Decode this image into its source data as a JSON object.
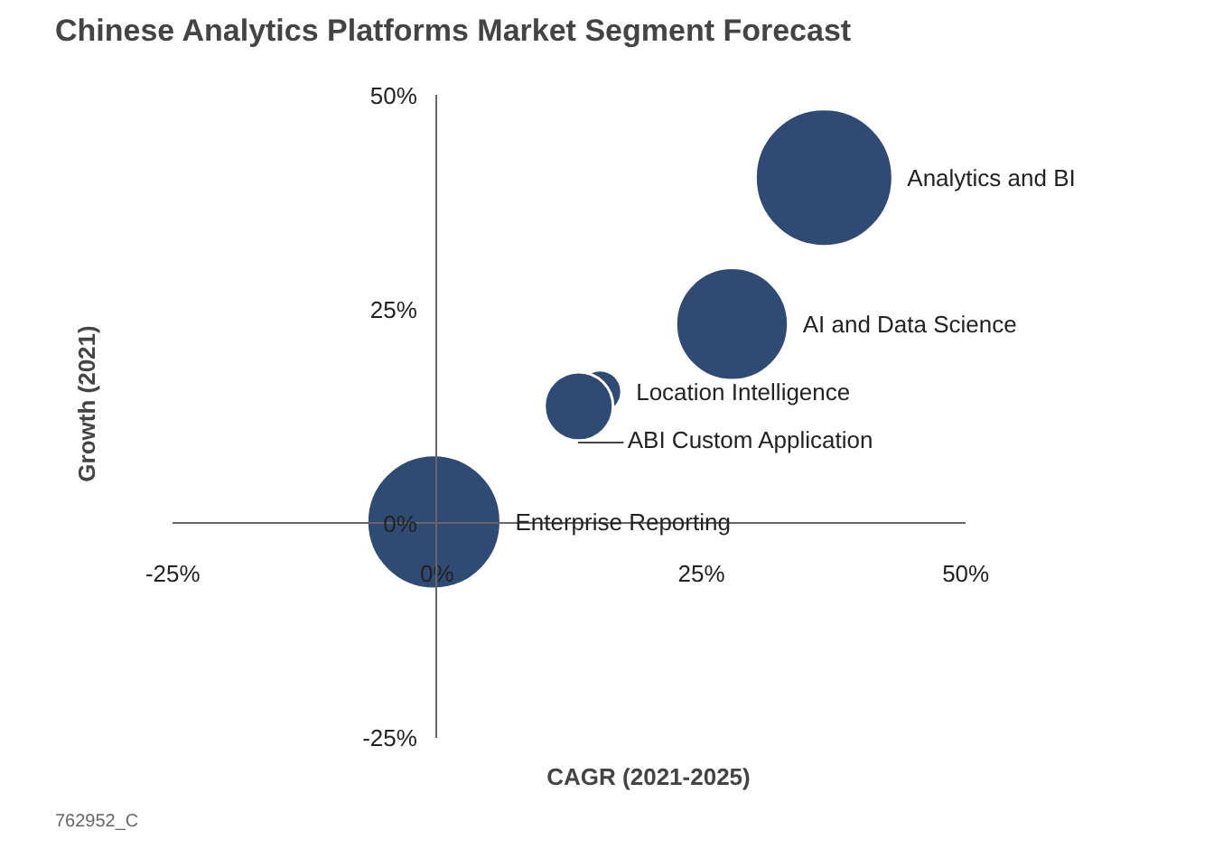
{
  "chart_data": {
    "type": "bubble",
    "title": "Chinese Analytics Platforms Market Segment Forecast",
    "xlabel": "CAGR (2021-2025)",
    "ylabel": "Growth (2021)",
    "series": [
      {
        "name": "Analytics and BI",
        "color": "#2f4b74",
        "x": [
          36.6
        ],
        "values": [
          40.4
        ],
        "sizes": [
          1.0
        ]
      },
      {
        "name": "AI and Data Science",
        "color": "#2f4b74",
        "x": [
          27.9
        ],
        "values": [
          23.3
        ],
        "sizes": [
          0.67
        ]
      },
      {
        "name": "Location Intelligence",
        "color": "#2f4b74",
        "x": [
          15.4
        ],
        "values": [
          15.4
        ],
        "sizes": [
          0.1
        ]
      },
      {
        "name": "ABI Custom Application",
        "color": "#2f4b74",
        "x": [
          13.4
        ],
        "values": [
          13.7
        ],
        "sizes": [
          0.25
        ]
      },
      {
        "name": "Enterprise Reporting",
        "color": "#2f4b74",
        "x": [
          -0.3
        ],
        "values": [
          0.2
        ],
        "sizes": [
          0.95
        ]
      }
    ],
    "xlim": [
      -25,
      50
    ],
    "ylim": [
      -25,
      50
    ],
    "xticks": [
      {
        "value": -25,
        "label": "-25%"
      },
      {
        "value": 0,
        "label": "0%"
      },
      {
        "value": 25,
        "label": "25%"
      },
      {
        "value": 50,
        "label": "50%"
      }
    ],
    "yticks": [
      {
        "value": -25,
        "label": "-25%"
      },
      {
        "value": 0,
        "label": "0%"
      },
      {
        "value": 25,
        "label": "25%"
      },
      {
        "value": 50,
        "label": "50%"
      }
    ],
    "annotations": [
      "762952_C"
    ]
  }
}
